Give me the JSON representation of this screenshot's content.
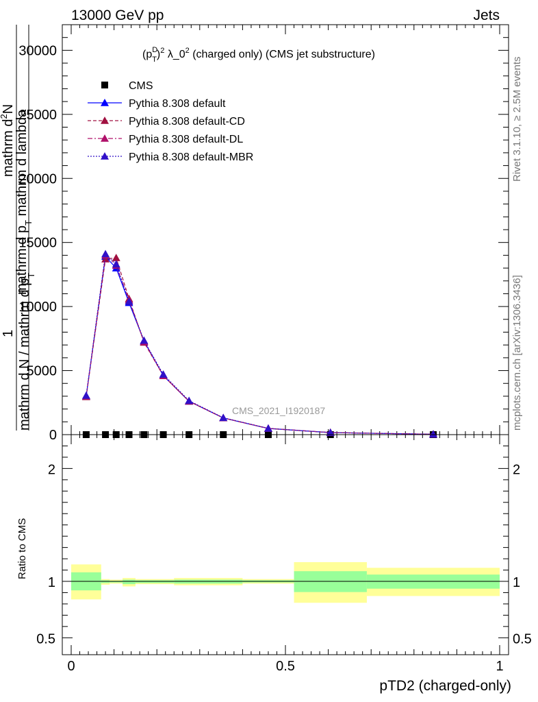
{
  "header": {
    "left": "13000 GeV pp",
    "right": "Jets"
  },
  "side_labels": {
    "rivet": "Rivet 3.1.10, ≥ 2.5M events",
    "mcplots": "mcplots.cern.ch [arXiv:1306.3436]"
  },
  "chart_data": [
    {
      "type": "line",
      "panel": "main",
      "title_parts": {
        "p": "(p",
        "sup_d": "D",
        "sub_t": "T",
        "rest_sq": ")",
        "sup_2a": "2",
        "lambda": " λ_0",
        "sup_2b": "2",
        "tail": " (charged only) (CMS jet substructure)"
      },
      "ylabel_parts": {
        "one": "1",
        "top": "mathrm d",
        "sup_2": "2",
        "top_n": "N",
        "num": "mathrm d p",
        "num_sub": "T",
        "num_tail": " mathrm d lambda",
        "den": "mathrm d N / mathrm d p",
        "den_sub": "T"
      },
      "watermark": "CMS_2021_I1920187",
      "xlim": [
        0,
        1
      ],
      "ylim": [
        0,
        32000
      ],
      "yticks": [
        0,
        5000,
        10000,
        15000,
        20000,
        25000,
        30000
      ],
      "ytick_labels": [
        "0",
        "5000",
        "10000",
        "15000",
        "20000",
        "25000",
        "30000"
      ],
      "x": [
        0.035,
        0.08,
        0.105,
        0.135,
        0.17,
        0.215,
        0.275,
        0.355,
        0.46,
        0.605,
        0.845
      ],
      "series": [
        {
          "name": "CMS",
          "color": "#000000",
          "marker": "square",
          "values": [
            0,
            0,
            0,
            0,
            0,
            0,
            0,
            0,
            0,
            0,
            0
          ]
        },
        {
          "name": "Pythia 8.308 default",
          "color": "#0000ff",
          "marker": "triangle",
          "dash": "",
          "values": [
            3000,
            13900,
            13000,
            10300,
            7300,
            4600,
            2600,
            1300,
            480,
            160,
            30
          ]
        },
        {
          "name": "Pythia 8.308 default-CD",
          "color": "#a01040",
          "marker": "triangle",
          "dash": "5,3",
          "values": [
            2950,
            13700,
            13800,
            10600,
            7200,
            4600,
            2600,
            1300,
            480,
            160,
            30
          ]
        },
        {
          "name": "Pythia 8.308 default-DL",
          "color": "#b0106a",
          "marker": "triangle",
          "dash": "7,3,2,3",
          "values": [
            3000,
            14000,
            13200,
            10500,
            7250,
            4600,
            2620,
            1310,
            490,
            165,
            32
          ]
        },
        {
          "name": "Pythia 8.308 default-MBR",
          "color": "#3010c8",
          "marker": "triangle",
          "dash": "2,2",
          "values": [
            3050,
            14100,
            13300,
            10400,
            7350,
            4700,
            2650,
            1320,
            490,
            160,
            31
          ]
        }
      ]
    },
    {
      "type": "area",
      "panel": "ratio",
      "ylabel": "Ratio to CMS",
      "xlabel": "pTD2 (charged-only)",
      "xlim": [
        0,
        1
      ],
      "ylim": [
        0.35,
        2.3
      ],
      "yticks": [
        0.5,
        1,
        2
      ],
      "ytick_labels": [
        "0.5",
        "1",
        "2"
      ],
      "xticks": [
        0,
        0.5,
        1
      ],
      "xtick_labels": [
        "0",
        "0.5",
        "1"
      ],
      "bins": [
        {
          "lo": 0.0,
          "hi": 0.07,
          "inner": [
            0.92,
            1.08
          ],
          "outer": [
            0.84,
            1.15
          ]
        },
        {
          "lo": 0.07,
          "hi": 0.09,
          "inner": [
            0.985,
            1.01
          ],
          "outer": [
            0.97,
            1.02
          ]
        },
        {
          "lo": 0.09,
          "hi": 0.12,
          "inner": [
            0.99,
            1.005
          ],
          "outer": [
            0.98,
            1.015
          ]
        },
        {
          "lo": 0.12,
          "hi": 0.15,
          "inner": [
            0.975,
            1.015
          ],
          "outer": [
            0.955,
            1.03
          ]
        },
        {
          "lo": 0.15,
          "hi": 0.24,
          "inner": [
            0.985,
            1.01
          ],
          "outer": [
            0.975,
            1.02
          ]
        },
        {
          "lo": 0.24,
          "hi": 0.4,
          "inner": [
            0.98,
            1.015
          ],
          "outer": [
            0.965,
            1.03
          ]
        },
        {
          "lo": 0.4,
          "hi": 0.52,
          "inner": [
            0.99,
            1.01
          ],
          "outer": [
            0.98,
            1.02
          ]
        },
        {
          "lo": 0.52,
          "hi": 0.69,
          "inner": [
            0.905,
            1.09
          ],
          "outer": [
            0.81,
            1.17
          ]
        },
        {
          "lo": 0.69,
          "hi": 1.0,
          "inner": [
            0.935,
            1.06
          ],
          "outer": [
            0.87,
            1.12
          ]
        }
      ],
      "colors": {
        "inner": "#99ff99",
        "outer": "#ffff99"
      }
    }
  ]
}
